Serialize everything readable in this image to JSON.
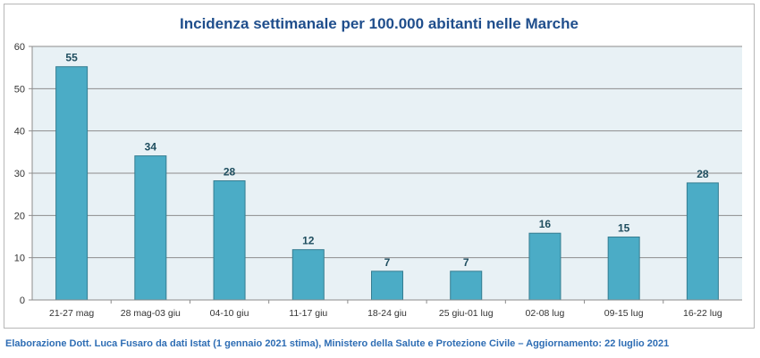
{
  "chart_data": {
    "type": "bar",
    "title": "Incidenza settimanale per 100.000 abitanti nelle Marche",
    "categories": [
      "21-27 mag",
      "28 mag-03 giu",
      "04-10 giu",
      "11-17 giu",
      "18-24 giu",
      "25 giu-01 lug",
      "02-08 lug",
      "09-15 lug",
      "16-22 lug"
    ],
    "values": [
      55.2,
      34.1,
      28.2,
      11.9,
      6.8,
      6.8,
      15.8,
      14.9,
      27.7
    ],
    "data_labels": [
      "55",
      "34",
      "28",
      "12",
      "7",
      "7",
      "16",
      "15",
      "28"
    ],
    "ylim": [
      0,
      60
    ],
    "yticks": [
      0,
      10,
      20,
      30,
      40,
      50,
      60
    ],
    "grid": true,
    "legend": "none",
    "colors": {
      "bar": "#4bacc6",
      "bar_edge": "#357d91",
      "plot_bg": "#e8f1f5",
      "label": "#1f4e5f",
      "title": "#1f4e8c",
      "footer": "#2e6db4"
    }
  },
  "footer": "Elaborazione Dott. Luca Fusaro da dati Istat (1 gennaio 2021 stima), Ministero della Salute e Protezione Civile – Aggiornamento: 22 luglio 2021"
}
